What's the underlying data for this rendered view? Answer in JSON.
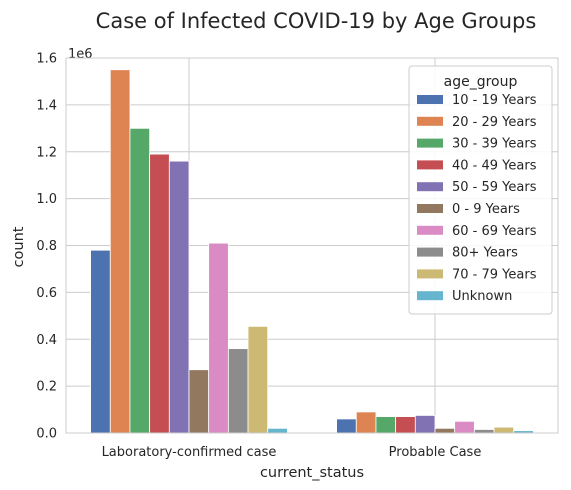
{
  "chart_data": {
    "type": "bar",
    "title": "Case of Infected COVID-19 by Age Groups",
    "xlabel": "current_status",
    "ylabel": "count",
    "y_exponent_label": "1e6",
    "ylim": [
      0,
      1.6
    ],
    "yticks": [
      0.0,
      0.2,
      0.4,
      0.6,
      0.8,
      1.0,
      1.2,
      1.4,
      1.6
    ],
    "ytick_labels": [
      "0.0",
      "0.2",
      "0.4",
      "0.6",
      "0.8",
      "1.0",
      "1.2",
      "1.4",
      "1.6"
    ],
    "grid": true,
    "categories": [
      "Laboratory-confirmed case",
      "Probable Case"
    ],
    "legend": {
      "title": "age_group",
      "position": "upper right"
    },
    "series": [
      {
        "name": "10 - 19 Years",
        "color": "#4c72b0",
        "values": [
          0.78,
          0.06
        ]
      },
      {
        "name": "20 - 29 Years",
        "color": "#dd8452",
        "values": [
          1.55,
          0.09
        ]
      },
      {
        "name": "30 - 39 Years",
        "color": "#55a868",
        "values": [
          1.3,
          0.07
        ]
      },
      {
        "name": "40 - 49 Years",
        "color": "#c44e52",
        "values": [
          1.19,
          0.07
        ]
      },
      {
        "name": "50 - 59 Years",
        "color": "#8172b3",
        "values": [
          1.16,
          0.075
        ]
      },
      {
        "name": "0 - 9 Years",
        "color": "#937860",
        "values": [
          0.27,
          0.02
        ]
      },
      {
        "name": "60 - 69 Years",
        "color": "#da8bc3",
        "values": [
          0.81,
          0.05
        ]
      },
      {
        "name": "80+ Years",
        "color": "#8c8c8c",
        "values": [
          0.36,
          0.015
        ]
      },
      {
        "name": "70 - 79 Years",
        "color": "#ccb974",
        "values": [
          0.455,
          0.025
        ]
      },
      {
        "name": "Unknown",
        "color": "#64b5cd",
        "values": [
          0.02,
          0.01
        ]
      }
    ]
  }
}
